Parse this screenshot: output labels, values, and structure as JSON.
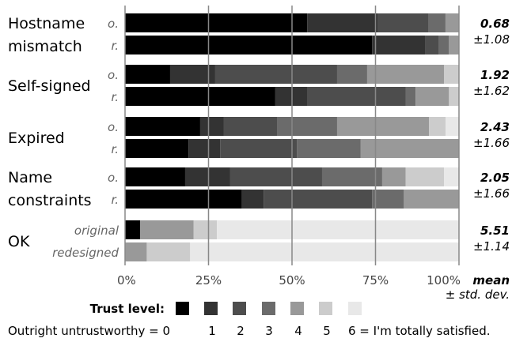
{
  "chart_data": {
    "type": "bar",
    "orientation": "horizontal-stacked-100",
    "categories": [
      "Hostname mismatch",
      "Self-signed",
      "Expired",
      "Name constraints",
      "OK"
    ],
    "category_lines": [
      [
        "Hostname",
        "mismatch"
      ],
      [
        "Self-signed"
      ],
      [
        "Expired"
      ],
      [
        "Name",
        "constraints"
      ],
      [
        "OK"
      ]
    ],
    "version_labels_short": [
      "o.",
      "r."
    ],
    "version_labels_long": [
      "original",
      "redesigned"
    ],
    "x_ticks": [
      "0%",
      "25%",
      "50%",
      "75%",
      "100%"
    ],
    "xlim": [
      0,
      100
    ],
    "grid": true,
    "trust_levels": [
      0,
      1,
      2,
      3,
      4,
      5,
      6
    ],
    "colors": [
      "#000000",
      "#333333",
      "#4d4d4d",
      "#6b6b6b",
      "#999999",
      "#cccccc",
      "#e8e8e8"
    ],
    "groups": [
      {
        "original": [
          54,
          21,
          15,
          5,
          4,
          0,
          0
        ],
        "redesigned": [
          74,
          16,
          4,
          3,
          3,
          0,
          0
        ],
        "mean": "0.68",
        "sd": "±1.08"
      },
      {
        "original": [
          13.5,
          13.5,
          36.5,
          9,
          23,
          4.5,
          0
        ],
        "redesigned": [
          45,
          9.5,
          29.5,
          3,
          10,
          3,
          0
        ],
        "mean": "1.92",
        "sd": "±1.62"
      },
      {
        "original": [
          22.5,
          7,
          16,
          18,
          27.5,
          5,
          4
        ],
        "redesigned": [
          19,
          9.5,
          23,
          19,
          29.5,
          0,
          0
        ],
        "mean": "2.43",
        "sd": "±1.66"
      },
      {
        "original": [
          18,
          13.5,
          27.5,
          18,
          7,
          11.5,
          4.5
        ],
        "redesigned": [
          35,
          6.5,
          32.5,
          9.5,
          16.5,
          0,
          0
        ],
        "mean": "2.05",
        "sd": "±1.66"
      },
      {
        "original": [
          4.5,
          0,
          0,
          0,
          16,
          7,
          72.5
        ],
        "redesigned": [
          0,
          0,
          0,
          0,
          6.5,
          13,
          80.5
        ],
        "mean": "5.51",
        "sd": "±1.14"
      }
    ],
    "summary_header": {
      "title": "mean",
      "subtitle": "± std. dev."
    },
    "legend": {
      "title": "Trust level:",
      "scale_low": "Outright untrustworthy = 0",
      "scale_mid": [
        "1",
        "2",
        "3",
        "4",
        "5"
      ],
      "scale_high": "6 = I'm totally satisfied."
    }
  }
}
